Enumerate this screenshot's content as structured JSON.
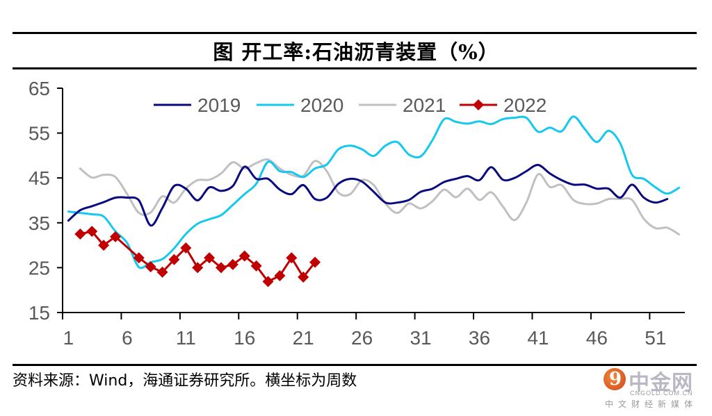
{
  "title": "图 开工率:石油沥青装置（%）",
  "source_note": "资料来源：Wind，海通证券研究所。横坐标为周数",
  "watermark": {
    "name": "中金网",
    "domain": "CNGOLD.COM.CN",
    "slogan": "中文财经新媒体"
  },
  "chart_data": {
    "type": "line",
    "title": "图 开工率:石油沥青装置（%）",
    "xlabel": "",
    "ylabel": "",
    "ylim": [
      15,
      65
    ],
    "yticks": [
      15,
      25,
      35,
      45,
      55,
      65
    ],
    "xlim": [
      1,
      53
    ],
    "xticks": [
      1,
      6,
      11,
      16,
      21,
      26,
      31,
      36,
      41,
      46,
      51
    ],
    "grid": false,
    "legend": "top-center",
    "x": [
      1,
      2,
      3,
      4,
      5,
      6,
      7,
      8,
      9,
      10,
      11,
      12,
      13,
      14,
      15,
      16,
      17,
      18,
      19,
      20,
      21,
      22,
      23,
      24,
      25,
      26,
      27,
      28,
      29,
      30,
      31,
      32,
      33,
      34,
      35,
      36,
      37,
      38,
      39,
      40,
      41,
      42,
      43,
      44,
      45,
      46,
      47,
      48,
      49,
      50,
      51,
      52,
      53
    ],
    "series": [
      {
        "name": "2019",
        "color": "#0a0a80",
        "marker": "none",
        "smooth": true,
        "values": [
          35.5,
          37.8,
          38.7,
          39.6,
          40.6,
          40.6,
          40.0,
          34.4,
          38.3,
          43.2,
          42.6,
          40.0,
          42.9,
          42.1,
          43.2,
          47.5,
          44.8,
          44.8,
          42.4,
          41.4,
          43.4,
          40.3,
          40.6,
          43.7,
          44.8,
          44.2,
          41.9,
          39.5,
          39.5,
          40.1,
          41.9,
          42.6,
          44.1,
          44.8,
          45.4,
          44.5,
          47.4,
          44.6,
          45.0,
          46.5,
          47.9,
          46.0,
          44.5,
          43.5,
          43.5,
          42.6,
          42.6,
          40.6,
          43.5,
          40.6,
          39.5,
          40.3,
          null
        ]
      },
      {
        "name": "2020",
        "color": "#14c8f0",
        "marker": "none",
        "smooth": true,
        "values": [
          37.5,
          37.2,
          36.9,
          36.4,
          33.1,
          30.5,
          25.1,
          26.2,
          26.9,
          29.3,
          32.5,
          34.8,
          35.8,
          36.7,
          39.0,
          41.4,
          43.7,
          48.6,
          46.5,
          46.3,
          45.2,
          47.1,
          48.0,
          51.4,
          52.2,
          51.4,
          49.9,
          52.2,
          53.0,
          50.2,
          49.8,
          53.4,
          58.1,
          57.5,
          57.1,
          57.6,
          57.0,
          58.1,
          58.4,
          58.4,
          55.3,
          56.2,
          55.4,
          58.7,
          55.8,
          53.0,
          55.5,
          52.7,
          45.7,
          44.8,
          42.9,
          41.5,
          42.8
        ]
      },
      {
        "name": "2021",
        "color": "#c0c0c0",
        "marker": "none",
        "smooth": true,
        "values": [
          null,
          47.1,
          45.1,
          45.7,
          45.2,
          41.4,
          37.2,
          37.3,
          40.9,
          39.5,
          42.6,
          44.5,
          44.6,
          46.0,
          48.5,
          47.1,
          48.3,
          49.1,
          47.1,
          45.7,
          45.5,
          48.8,
          46.5,
          41.7,
          41.4,
          44.5,
          43.4,
          39.3,
          37.2,
          39.3,
          38.2,
          39.8,
          42.4,
          40.7,
          42.6,
          40.1,
          41.8,
          38.6,
          35.6,
          39.5,
          45.8,
          43.0,
          43.4,
          40.1,
          39.2,
          39.3,
          40.3,
          40.3,
          40.1,
          35.9,
          33.8,
          33.9,
          32.4
        ]
      },
      {
        "name": "2022",
        "color": "#c00000",
        "marker": "diamond",
        "smooth": false,
        "values": [
          null,
          32.5,
          33.1,
          30.0,
          31.9,
          null,
          27.2,
          25.2,
          24.0,
          26.8,
          29.4,
          25.0,
          27.2,
          25.0,
          25.7,
          27.6,
          25.4,
          21.9,
          23.2,
          27.2,
          22.9,
          26.2
        ]
      }
    ]
  }
}
